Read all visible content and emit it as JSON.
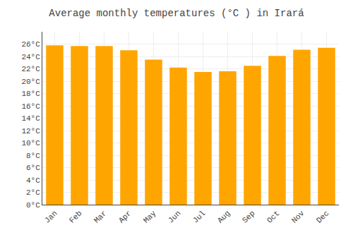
{
  "chart_data": {
    "type": "bar",
    "title": "Average monthly temperatures (°C ) in Irará",
    "categories": [
      "Jan",
      "Feb",
      "Mar",
      "Apr",
      "May",
      "Jun",
      "Jul",
      "Aug",
      "Sep",
      "Oct",
      "Nov",
      "Dec"
    ],
    "values": [
      25.8,
      25.7,
      25.7,
      25.0,
      23.5,
      22.2,
      21.5,
      21.6,
      22.5,
      24.1,
      25.1,
      25.4
    ],
    "color": "#FFA500",
    "ylim": [
      0,
      28
    ],
    "yticks": [
      {
        "value": 0,
        "label": "0°C"
      },
      {
        "value": 2,
        "label": "2°C"
      },
      {
        "value": 4,
        "label": "4°C"
      },
      {
        "value": 6,
        "label": "6°C"
      },
      {
        "value": 8,
        "label": "8°C"
      },
      {
        "value": 10,
        "label": "10°C"
      },
      {
        "value": 12,
        "label": "12°C"
      },
      {
        "value": 14,
        "label": "14°C"
      },
      {
        "value": 16,
        "label": "16°C"
      },
      {
        "value": 18,
        "label": "18°C"
      },
      {
        "value": 20,
        "label": "20°C"
      },
      {
        "value": 22,
        "label": "22°C"
      },
      {
        "value": 24,
        "label": "24°C"
      },
      {
        "value": 26,
        "label": "26°C"
      }
    ],
    "grid": true
  }
}
